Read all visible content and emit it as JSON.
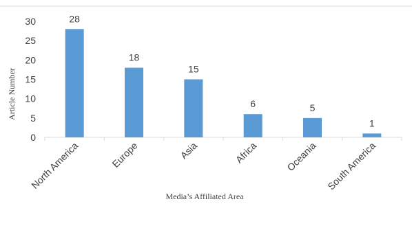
{
  "chart_data": {
    "type": "bar",
    "categories": [
      "North America",
      "Europe",
      "Asia",
      "Africa",
      "Oceania",
      "South America"
    ],
    "values": [
      28,
      18,
      15,
      6,
      5,
      1
    ],
    "title": "",
    "xlabel": "Media’s Affiliated Area",
    "ylabel": "Article Number",
    "ylim": [
      0,
      30
    ],
    "yticks": [
      0,
      5,
      10,
      15,
      20,
      25,
      30
    ],
    "grid": false,
    "bar_color": "#5B9BD5",
    "axis_color": "#D9D9D9",
    "text_color": "#404040"
  }
}
